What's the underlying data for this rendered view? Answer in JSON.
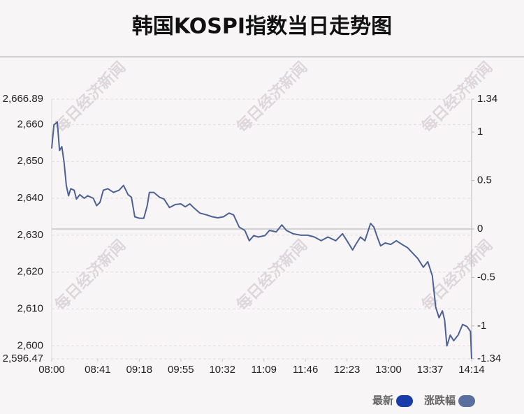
{
  "chart_data": {
    "type": "line",
    "title": "韩国KOSPI指数当日走势图",
    "watermark": "每日经济新闻",
    "x": [
      0,
      2,
      5,
      7,
      9,
      11,
      13,
      15,
      17,
      20,
      22,
      25,
      29,
      32,
      37,
      40,
      43,
      46,
      50,
      55,
      60,
      64,
      68,
      71,
      74,
      78,
      82,
      85,
      87,
      91,
      96,
      100,
      105,
      110,
      115,
      119,
      123,
      127,
      132,
      138,
      143,
      148,
      153,
      158,
      162,
      167,
      172,
      176,
      180,
      184,
      190,
      194,
      200,
      205,
      209,
      215,
      222,
      228,
      234,
      240,
      246,
      253,
      259,
      263,
      268,
      271,
      275,
      279,
      284,
      287,
      290,
      293,
      297,
      302,
      307,
      312,
      317,
      321,
      326,
      331,
      335,
      339,
      342,
      345,
      348,
      350,
      352,
      355,
      358,
      362,
      366,
      370,
      373,
      374
    ],
    "xlim": [
      0,
      374
    ],
    "xticks": [
      {
        "value": 0,
        "label": "08:00"
      },
      {
        "value": 41,
        "label": "08:41"
      },
      {
        "value": 78,
        "label": "09:18"
      },
      {
        "value": 115,
        "label": "09:55"
      },
      {
        "value": 152,
        "label": "10:32"
      },
      {
        "value": 189,
        "label": "11:09"
      },
      {
        "value": 226,
        "label": "11:46"
      },
      {
        "value": 263,
        "label": "12:23"
      },
      {
        "value": 300,
        "label": "13:00"
      },
      {
        "value": 337,
        "label": "13:37"
      },
      {
        "value": 374,
        "label": "14:14"
      }
    ],
    "series": [
      {
        "name": "最新",
        "color": "#1a3caa",
        "values": [
          2653.5,
          2659.9,
          2660.7,
          2653,
          2654,
          2649.8,
          2643.5,
          2640.7,
          2642.6,
          2642.2,
          2639.8,
          2641,
          2640,
          2640.7,
          2640,
          2638,
          2638.9,
          2642.2,
          2642.6,
          2641.6,
          2642.2,
          2643.5,
          2641,
          2640.3,
          2635,
          2634.6,
          2634.6,
          2637.9,
          2641.6,
          2641.6,
          2640.3,
          2639.8,
          2637.5,
          2638.3,
          2638.5,
          2637.7,
          2638.5,
          2637.3,
          2636,
          2635.5,
          2635,
          2634.7,
          2635,
          2636,
          2635.5,
          2632.2,
          2631.3,
          2628.5,
          2629.9,
          2629.5,
          2629.9,
          2631.3,
          2630.9,
          2632.8,
          2631.3,
          2630.4,
          2630,
          2630,
          2629.5,
          2628.5,
          2629.5,
          2628.5,
          2630.4,
          2628.5,
          2626,
          2627.6,
          2629.5,
          2628.5,
          2633.2,
          2632.2,
          2629.5,
          2627.1,
          2627.9,
          2627.5,
          2628.5,
          2627.5,
          2626.6,
          2625.3,
          2623.7,
          2621.3,
          2622.8,
          2619,
          2610.5,
          2607.6,
          2609.5,
          2607,
          2600,
          2602.9,
          2601.4,
          2602.9,
          2605.8,
          2605.2,
          2603.9,
          2596.47
        ]
      },
      {
        "name": "涨跌幅",
        "color": "#5b6f9f",
        "axis": "y2"
      }
    ],
    "line_color": "#4d6193",
    "ylim": [
      2596.47,
      2666.89
    ],
    "yticks": [
      {
        "value": 2596.47,
        "label": "2,596.47"
      },
      {
        "value": 2600,
        "label": "2,600"
      },
      {
        "value": 2610,
        "label": "2,610"
      },
      {
        "value": 2620,
        "label": "2,620"
      },
      {
        "value": 2630,
        "label": "2,630"
      },
      {
        "value": 2640,
        "label": "2,640"
      },
      {
        "value": 2650,
        "label": "2,650"
      },
      {
        "value": 2660,
        "label": "2,660"
      },
      {
        "value": 2666.89,
        "label": "2,666.89"
      }
    ],
    "y2lim": [
      -1.34,
      1.34
    ],
    "y2ticks": [
      -1.34,
      -1,
      -0.5,
      0,
      0.5,
      1,
      1.34
    ],
    "grid": true
  }
}
